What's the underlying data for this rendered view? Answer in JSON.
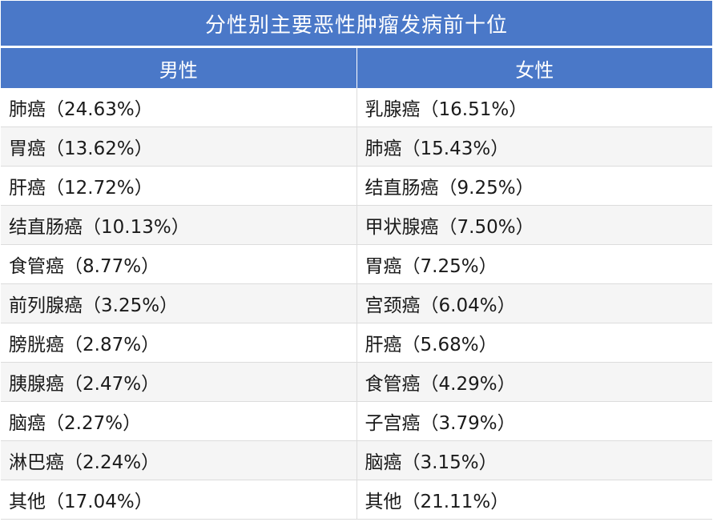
{
  "title": "分性别主要恶性肿瘤发病前十位",
  "headers": {
    "male": "男性",
    "female": "女性"
  },
  "rows": [
    {
      "male": "肺癌（24.63%）",
      "female": "乳腺癌（16.51%）"
    },
    {
      "male": "胃癌（13.62%）",
      "female": "肺癌（15.43%）"
    },
    {
      "male": "肝癌（12.72%）",
      "female": "结直肠癌（9.25%）"
    },
    {
      "male": "结直肠癌（10.13%）",
      "female": "甲状腺癌（7.50%）"
    },
    {
      "male": "食管癌（8.77%）",
      "female": "胃癌（7.25%）"
    },
    {
      "male": "前列腺癌（3.25%）",
      "female": "宫颈癌（6.04%）"
    },
    {
      "male": "膀胱癌（2.87%）",
      "female": "肝癌（5.68%）"
    },
    {
      "male": "胰腺癌（2.47%）",
      "female": "食管癌（4.29%）"
    },
    {
      "male": "脑癌（2.27%）",
      "female": "子宫癌（3.79%）"
    },
    {
      "male": "淋巴癌（2.24%）",
      "female": "脑癌（3.15%）"
    },
    {
      "male": "其他（17.04%）",
      "female": "其他（21.11%）"
    }
  ],
  "colors": {
    "header_bg": "#4a78c8",
    "header_text": "#ffffff",
    "row_alt": "#f5f5f5",
    "border": "#dcdcdc"
  }
}
